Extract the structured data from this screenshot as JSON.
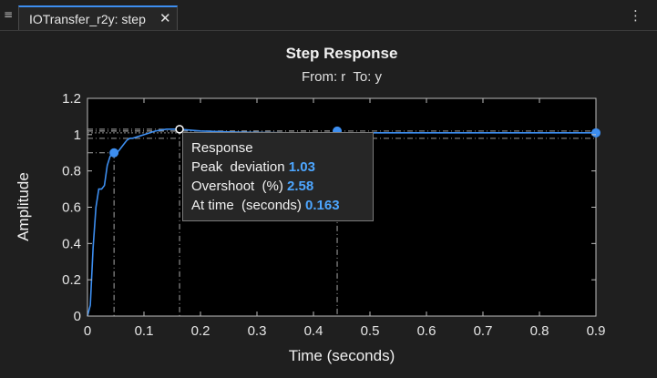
{
  "tab": {
    "menu_icon": "tab-menu-icon",
    "label": "IOTransfer_r2y: step",
    "close_icon": "close-icon"
  },
  "toolbar": {
    "more_icon": "more-options-icon"
  },
  "colors": {
    "series": "#3d8ef0",
    "axes_bg": "#000000",
    "accent": "#4da6ff"
  },
  "chart_data": {
    "type": "line",
    "title": "Step Response",
    "subtitle": "From: r  To: y",
    "xlabel": "Time (seconds)",
    "ylabel": "Amplitude",
    "xlim": [
      0,
      0.9
    ],
    "ylim": [
      0,
      1.2
    ],
    "xticks": [
      "0",
      "0.1",
      "0.2",
      "0.3",
      "0.4",
      "0.5",
      "0.6",
      "0.7",
      "0.8",
      "0.9"
    ],
    "yticks": [
      "0",
      "0.2",
      "0.4",
      "0.6",
      "0.8",
      "1",
      "1.2"
    ],
    "grid": false,
    "series": [
      {
        "x": [
          0,
          0.005,
          0.01,
          0.015,
          0.02,
          0.025,
          0.03,
          0.035,
          0.04,
          0.045,
          0.05,
          0.055,
          0.06,
          0.065,
          0.07,
          0.075,
          0.08,
          0.09,
          0.1,
          0.11,
          0.12,
          0.13,
          0.14,
          0.15,
          0.163,
          0.18,
          0.2,
          0.25,
          0.3,
          0.35,
          0.4,
          0.44,
          0.5,
          0.6,
          0.7,
          0.8,
          0.9
        ],
        "y": [
          0,
          0.06,
          0.38,
          0.6,
          0.7,
          0.7,
          0.72,
          0.83,
          0.88,
          0.9,
          0.9,
          0.91,
          0.93,
          0.95,
          0.97,
          0.98,
          0.98,
          0.99,
          1.0,
          1.01,
          1.02,
          1.025,
          1.03,
          1.03,
          1.03,
          1.025,
          1.02,
          1.015,
          1.012,
          1.01,
          1.01,
          1.01,
          1.01,
          1.01,
          1.01,
          1.01,
          1.01
        ]
      }
    ],
    "reference_lines": {
      "upper": 1.02,
      "lower": 0.98,
      "final_value": 1.01
    },
    "markers": [
      {
        "name": "rise-time-marker",
        "x": 0.047,
        "y": 0.9,
        "style": "filled"
      },
      {
        "name": "peak-marker",
        "x": 0.163,
        "y": 1.03,
        "style": "hollow"
      },
      {
        "name": "settling-time-marker",
        "x": 0.442,
        "y": 1.02,
        "style": "filled"
      },
      {
        "name": "steady-state-marker",
        "x": 0.9,
        "y": 1.01,
        "style": "filled"
      }
    ],
    "datatip": {
      "title": "Response",
      "rows": [
        {
          "label": "Peak  deviation",
          "value": "1.03"
        },
        {
          "label": "Overshoot  (%)",
          "value": "2.58"
        },
        {
          "label": "At time  (seconds)",
          "value": "0.163"
        }
      ]
    }
  }
}
